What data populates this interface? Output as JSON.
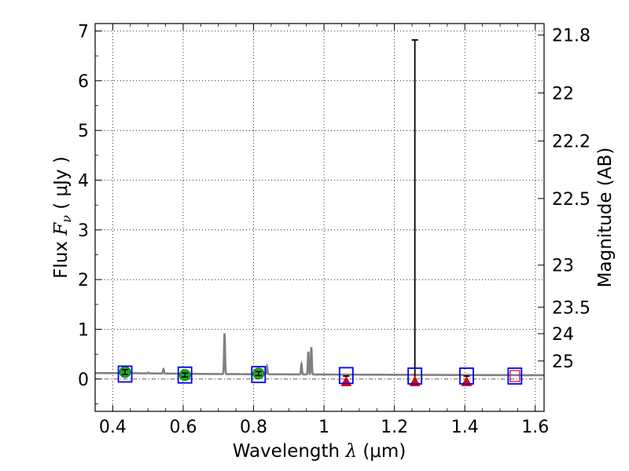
{
  "chart_data": {
    "type": "scatter",
    "xlabel": {
      "prefix": "Wavelength  ",
      "symbol": "λ",
      "units": " (μm)"
    },
    "ylabel": {
      "prefix": "Flux  ",
      "symbol": "F",
      "subscript": "ν",
      "units": "  ( μJy )"
    },
    "y2label": "Magnitude (AB)",
    "xlim": [
      0.35,
      1.625
    ],
    "ylim": [
      -0.65,
      7.15
    ],
    "grid": true,
    "x_ticks": [
      {
        "value": 0.4,
        "label": "0.4"
      },
      {
        "value": 0.6,
        "label": "0.6"
      },
      {
        "value": 0.8,
        "label": "0.8"
      },
      {
        "value": 1.0,
        "label": "1"
      },
      {
        "value": 1.2,
        "label": "1.2"
      },
      {
        "value": 1.4,
        "label": "1.4"
      },
      {
        "value": 1.6,
        "label": "1.6"
      }
    ],
    "y_ticks": [
      {
        "value": 0,
        "label": "0"
      },
      {
        "value": 1,
        "label": "1"
      },
      {
        "value": 2,
        "label": "2"
      },
      {
        "value": 3,
        "label": "3"
      },
      {
        "value": 4,
        "label": "4"
      },
      {
        "value": 5,
        "label": "5"
      },
      {
        "value": 6,
        "label": "6"
      },
      {
        "value": 7,
        "label": "7"
      }
    ],
    "y2_ticks": [
      {
        "value": 21.8,
        "label": "21.8"
      },
      {
        "value": 22,
        "label": "22"
      },
      {
        "value": 22.2,
        "label": "22.2"
      },
      {
        "value": 22.5,
        "label": "22.5"
      },
      {
        "value": 23,
        "label": "23"
      },
      {
        "value": 23.5,
        "label": "23.5"
      },
      {
        "value": 24,
        "label": "24"
      },
      {
        "value": 25,
        "label": "25"
      }
    ],
    "colors": {
      "model": "#808080",
      "detection": "#1ea81e",
      "upper_limit": "#dd0000",
      "model_band": "#0000ee",
      "excluded_band": "#cc2255",
      "errorbar": "#000000",
      "grid": "#000000"
    },
    "model_spectrum": {
      "continuum": [
        [
          0.35,
          0.12
        ],
        [
          0.45,
          0.118
        ],
        [
          0.55,
          0.11
        ],
        [
          0.7,
          0.1
        ],
        [
          0.9,
          0.094
        ],
        [
          1.1,
          0.088
        ],
        [
          1.3,
          0.083
        ],
        [
          1.5,
          0.079
        ],
        [
          1.625,
          0.077
        ]
      ],
      "emission_lines": [
        {
          "x": 0.4365,
          "peak": 0.17
        },
        {
          "x": 0.501,
          "peak": 0.13
        },
        {
          "x": 0.544,
          "peak": 0.2
        },
        {
          "x": 0.7175,
          "peak": 0.92
        },
        {
          "x": 0.838,
          "peak": 0.26
        },
        {
          "x": 0.936,
          "peak": 0.3
        },
        {
          "x": 0.9555,
          "peak": 0.55
        },
        {
          "x": 0.964,
          "peak": 0.64
        }
      ]
    },
    "detections": [
      {
        "x": 0.435,
        "y": 0.14,
        "yerr": 0.05
      },
      {
        "x": 0.605,
        "y": 0.08,
        "yerr": 0.04
      },
      {
        "x": 0.814,
        "y": 0.11,
        "yerr": 0.04
      }
    ],
    "upper_limits": [
      {
        "x": 1.063,
        "y": -0.05,
        "err_low": -0.05,
        "err_high": 0.06
      },
      {
        "x": 1.258,
        "y": -0.05,
        "err_low": -0.05,
        "err_high": 6.82
      },
      {
        "x": 1.405,
        "y": -0.05,
        "err_low": -0.05,
        "err_high": 0.06
      }
    ],
    "model_bands": [
      {
        "x": 0.435,
        "y": 0.1
      },
      {
        "x": 0.605,
        "y": 0.08
      },
      {
        "x": 0.814,
        "y": 0.09
      },
      {
        "x": 1.063,
        "y": 0.07
      },
      {
        "x": 1.258,
        "y": 0.06
      },
      {
        "x": 1.405,
        "y": 0.06
      }
    ],
    "excluded_bands": [
      {
        "x": 1.542,
        "y": 0.06
      }
    ]
  }
}
